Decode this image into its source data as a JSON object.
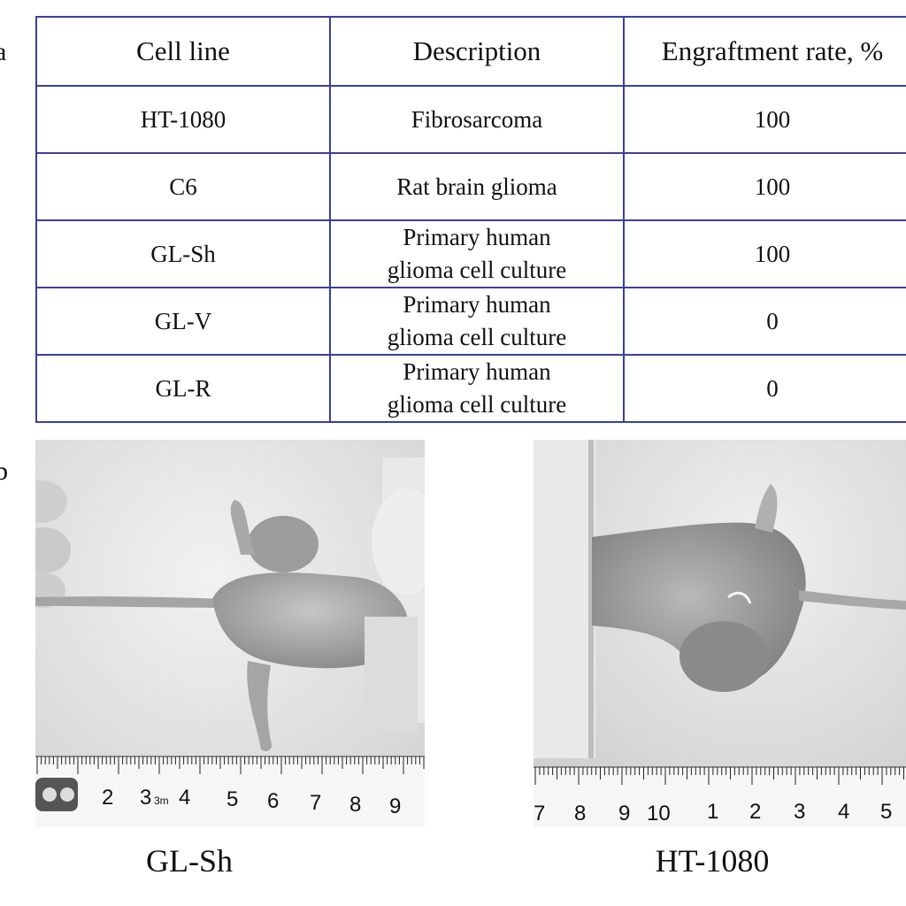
{
  "panels": {
    "a": "a",
    "b": "b"
  },
  "table": {
    "headers": [
      "Cell line",
      "Description",
      "Engraftment rate, %"
    ],
    "rows": [
      {
        "cell_line": "HT-1080",
        "description_lines": [
          "Fibrosarcoma"
        ],
        "rate": "100"
      },
      {
        "cell_line": "C6",
        "description_lines": [
          "Rat brain glioma"
        ],
        "rate": "100"
      },
      {
        "cell_line": "GL-Sh",
        "description_lines": [
          "Primary human",
          "glioma cell culture"
        ],
        "rate": "100"
      },
      {
        "cell_line": "GL-V",
        "description_lines": [
          "Primary human",
          "glioma cell culture"
        ],
        "rate": "0"
      },
      {
        "cell_line": "GL-R",
        "description_lines": [
          "Primary human",
          "glioma cell culture"
        ],
        "rate": "0"
      }
    ]
  },
  "photos": {
    "left": {
      "caption": "GL-Sh",
      "ruler_numbers": [
        "2",
        "3",
        "3m",
        "4",
        "5",
        "6",
        "7",
        "8",
        "9"
      ]
    },
    "right": {
      "caption": "HT-1080",
      "ruler_numbers": [
        "7",
        "8",
        "9",
        "10",
        "1",
        "2",
        "3",
        "4",
        "5"
      ]
    }
  },
  "colors": {
    "table_border": "#3b3f9c",
    "photo_bg": "#e6e6e6"
  }
}
